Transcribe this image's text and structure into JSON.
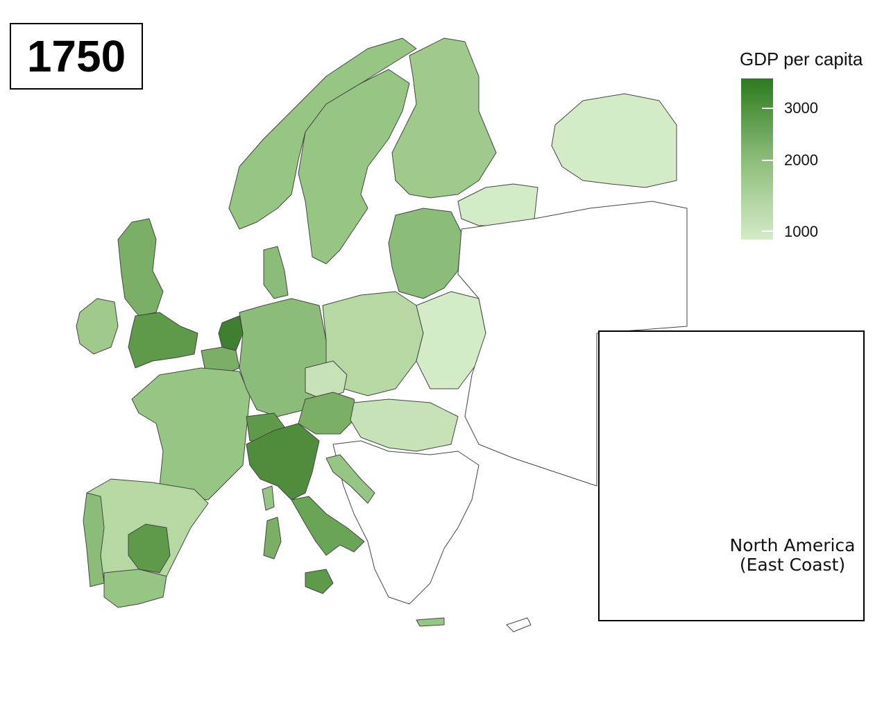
{
  "year": "1750",
  "legend": {
    "title": "GDP per capita",
    "ticks": [
      "3000",
      "2000",
      "1000"
    ],
    "colors": {
      "high": "#2c7a1e",
      "mid": "#8cbc7a",
      "low": "#d4ebc8"
    }
  },
  "inset": {
    "label_line1": "North America",
    "label_line2": "(East Coast)"
  },
  "colors": {
    "border": "#333333",
    "no_data": "#ffffff",
    "level_1": "#d4ebc8",
    "level_2": "#b6d9a4",
    "level_3": "#97c684",
    "level_4": "#7aaf65",
    "level_5": "#5e9a4a",
    "level_6": "#3f8030"
  }
}
